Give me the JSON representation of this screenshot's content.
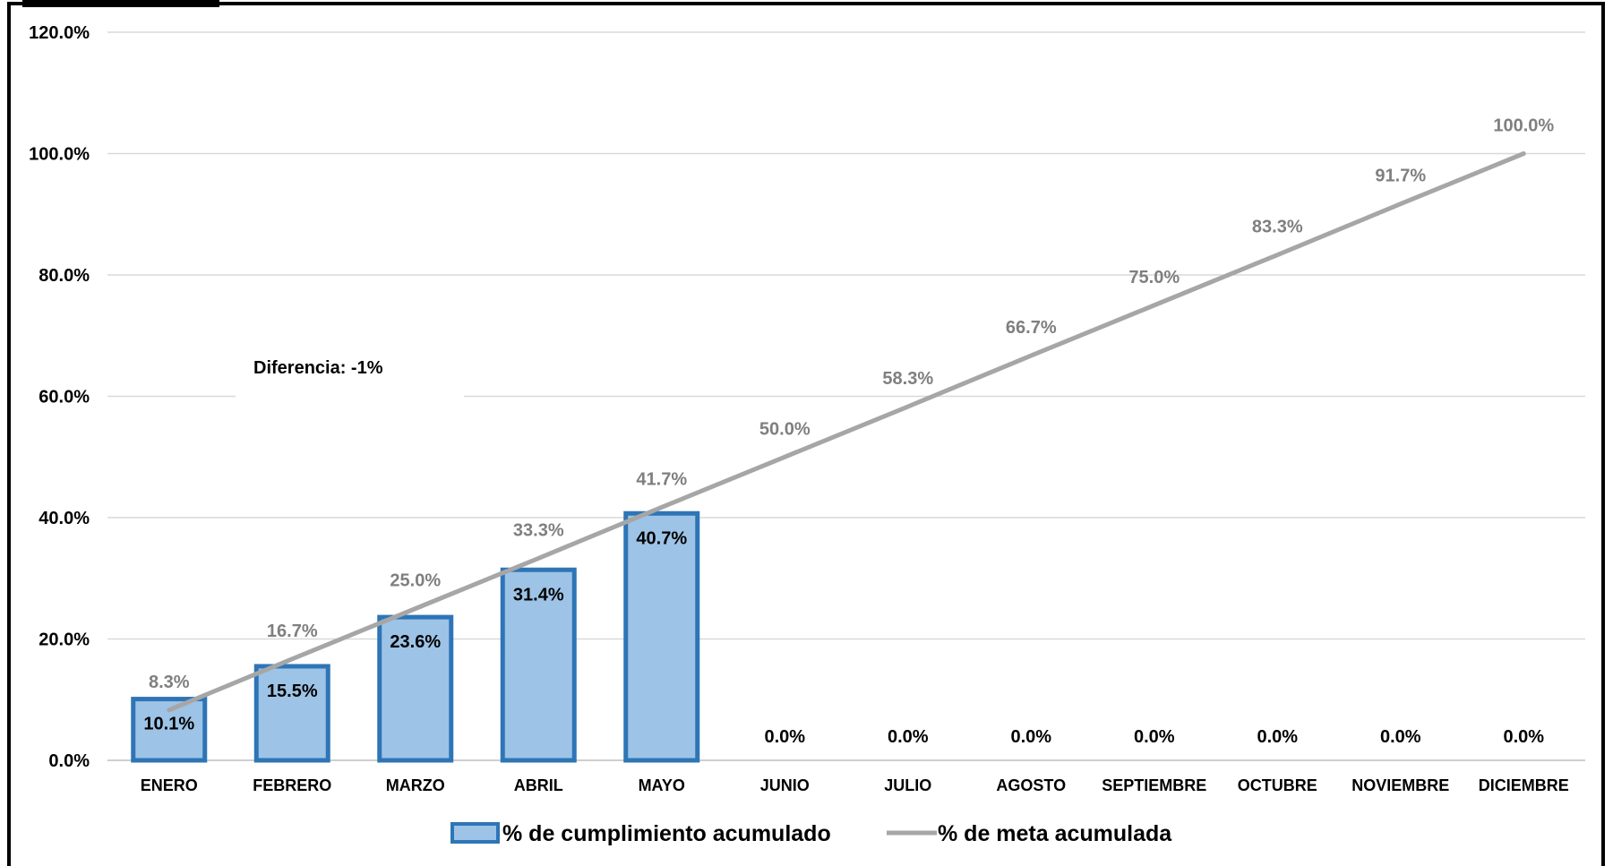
{
  "chart_data": {
    "type": "bar",
    "categories": [
      "ENERO",
      "FEBRERO",
      "MARZO",
      "ABRIL",
      "MAYO",
      "JUNIO",
      "JULIO",
      "AGOSTO",
      "SEPTIEMBRE",
      "OCTUBRE",
      "NOVIEMBRE",
      "DICIEMBRE"
    ],
    "series": [
      {
        "name": "% de cumplimiento acumulado",
        "kind": "bar",
        "values": [
          10.1,
          15.5,
          23.6,
          31.4,
          40.7,
          0.0,
          0.0,
          0.0,
          0.0,
          0.0,
          0.0,
          0.0
        ],
        "labels": [
          "10.1%",
          "15.5%",
          "23.6%",
          "31.4%",
          "40.7%",
          "0.0%",
          "0.0%",
          "0.0%",
          "0.0%",
          "0.0%",
          "0.0%",
          "0.0%"
        ],
        "fill": "#9dc3e6",
        "stroke": "#2e75b6"
      },
      {
        "name": "% de meta acumulada",
        "kind": "line",
        "values": [
          8.3,
          16.7,
          25.0,
          33.3,
          41.7,
          50.0,
          58.3,
          66.7,
          75.0,
          83.3,
          91.7,
          100.0
        ],
        "labels": [
          "8.3%",
          "16.7%",
          "25.0%",
          "33.3%",
          "41.7%",
          "50.0%",
          "58.3%",
          "66.7%",
          "75.0%",
          "83.3%",
          "91.7%",
          "100.0%"
        ],
        "stroke": "#a6a6a6"
      }
    ],
    "ylim": [
      0,
      120
    ],
    "yticks": [
      "0.0%",
      "20.0%",
      "40.0%",
      "60.0%",
      "80.0%",
      "100.0%",
      "120.0%"
    ],
    "grid": true,
    "legend": "bottom",
    "annotation": "Diferencia: -1%",
    "title": "",
    "xlabel": "",
    "ylabel": ""
  }
}
